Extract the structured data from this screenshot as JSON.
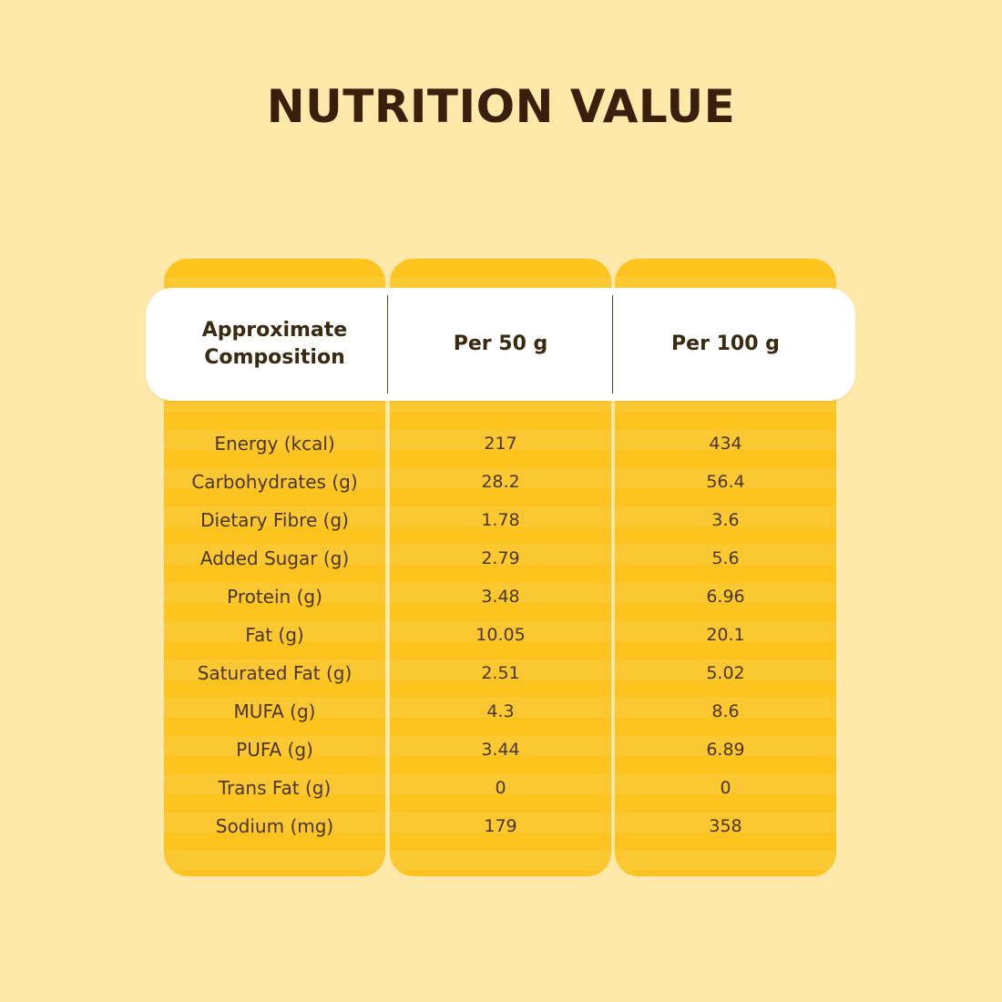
{
  "title": "NUTRITION VALUE",
  "table": {
    "headers": [
      "Approximate Composition",
      "Per 50 g",
      "Per 100 g"
    ],
    "rows": [
      [
        "Energy (kcal)",
        "217",
        "434"
      ],
      [
        "Carbohydrates (g)",
        "28.2",
        "56.4"
      ],
      [
        "Dietary Fibre (g)",
        "1.78",
        "3.6"
      ],
      [
        "Added Sugar (g)",
        "2.79",
        "5.6"
      ],
      [
        "Protein (g)",
        "3.48",
        "6.96"
      ],
      [
        "Fat (g)",
        "10.05",
        "20.1"
      ],
      [
        "Saturated Fat (g)",
        "2.51",
        "5.02"
      ],
      [
        "MUFA (g)",
        "4.3",
        "8.6"
      ],
      [
        "PUFA (g)",
        "3.44",
        "6.89"
      ],
      [
        "Trans Fat (g)",
        "0",
        "0"
      ],
      [
        "Sodium (mg)",
        "179",
        "358"
      ]
    ]
  },
  "colors": {
    "background": "#fee8aa",
    "column": "#fdc41f",
    "header": "#ffffff",
    "title": "#3a200c"
  }
}
